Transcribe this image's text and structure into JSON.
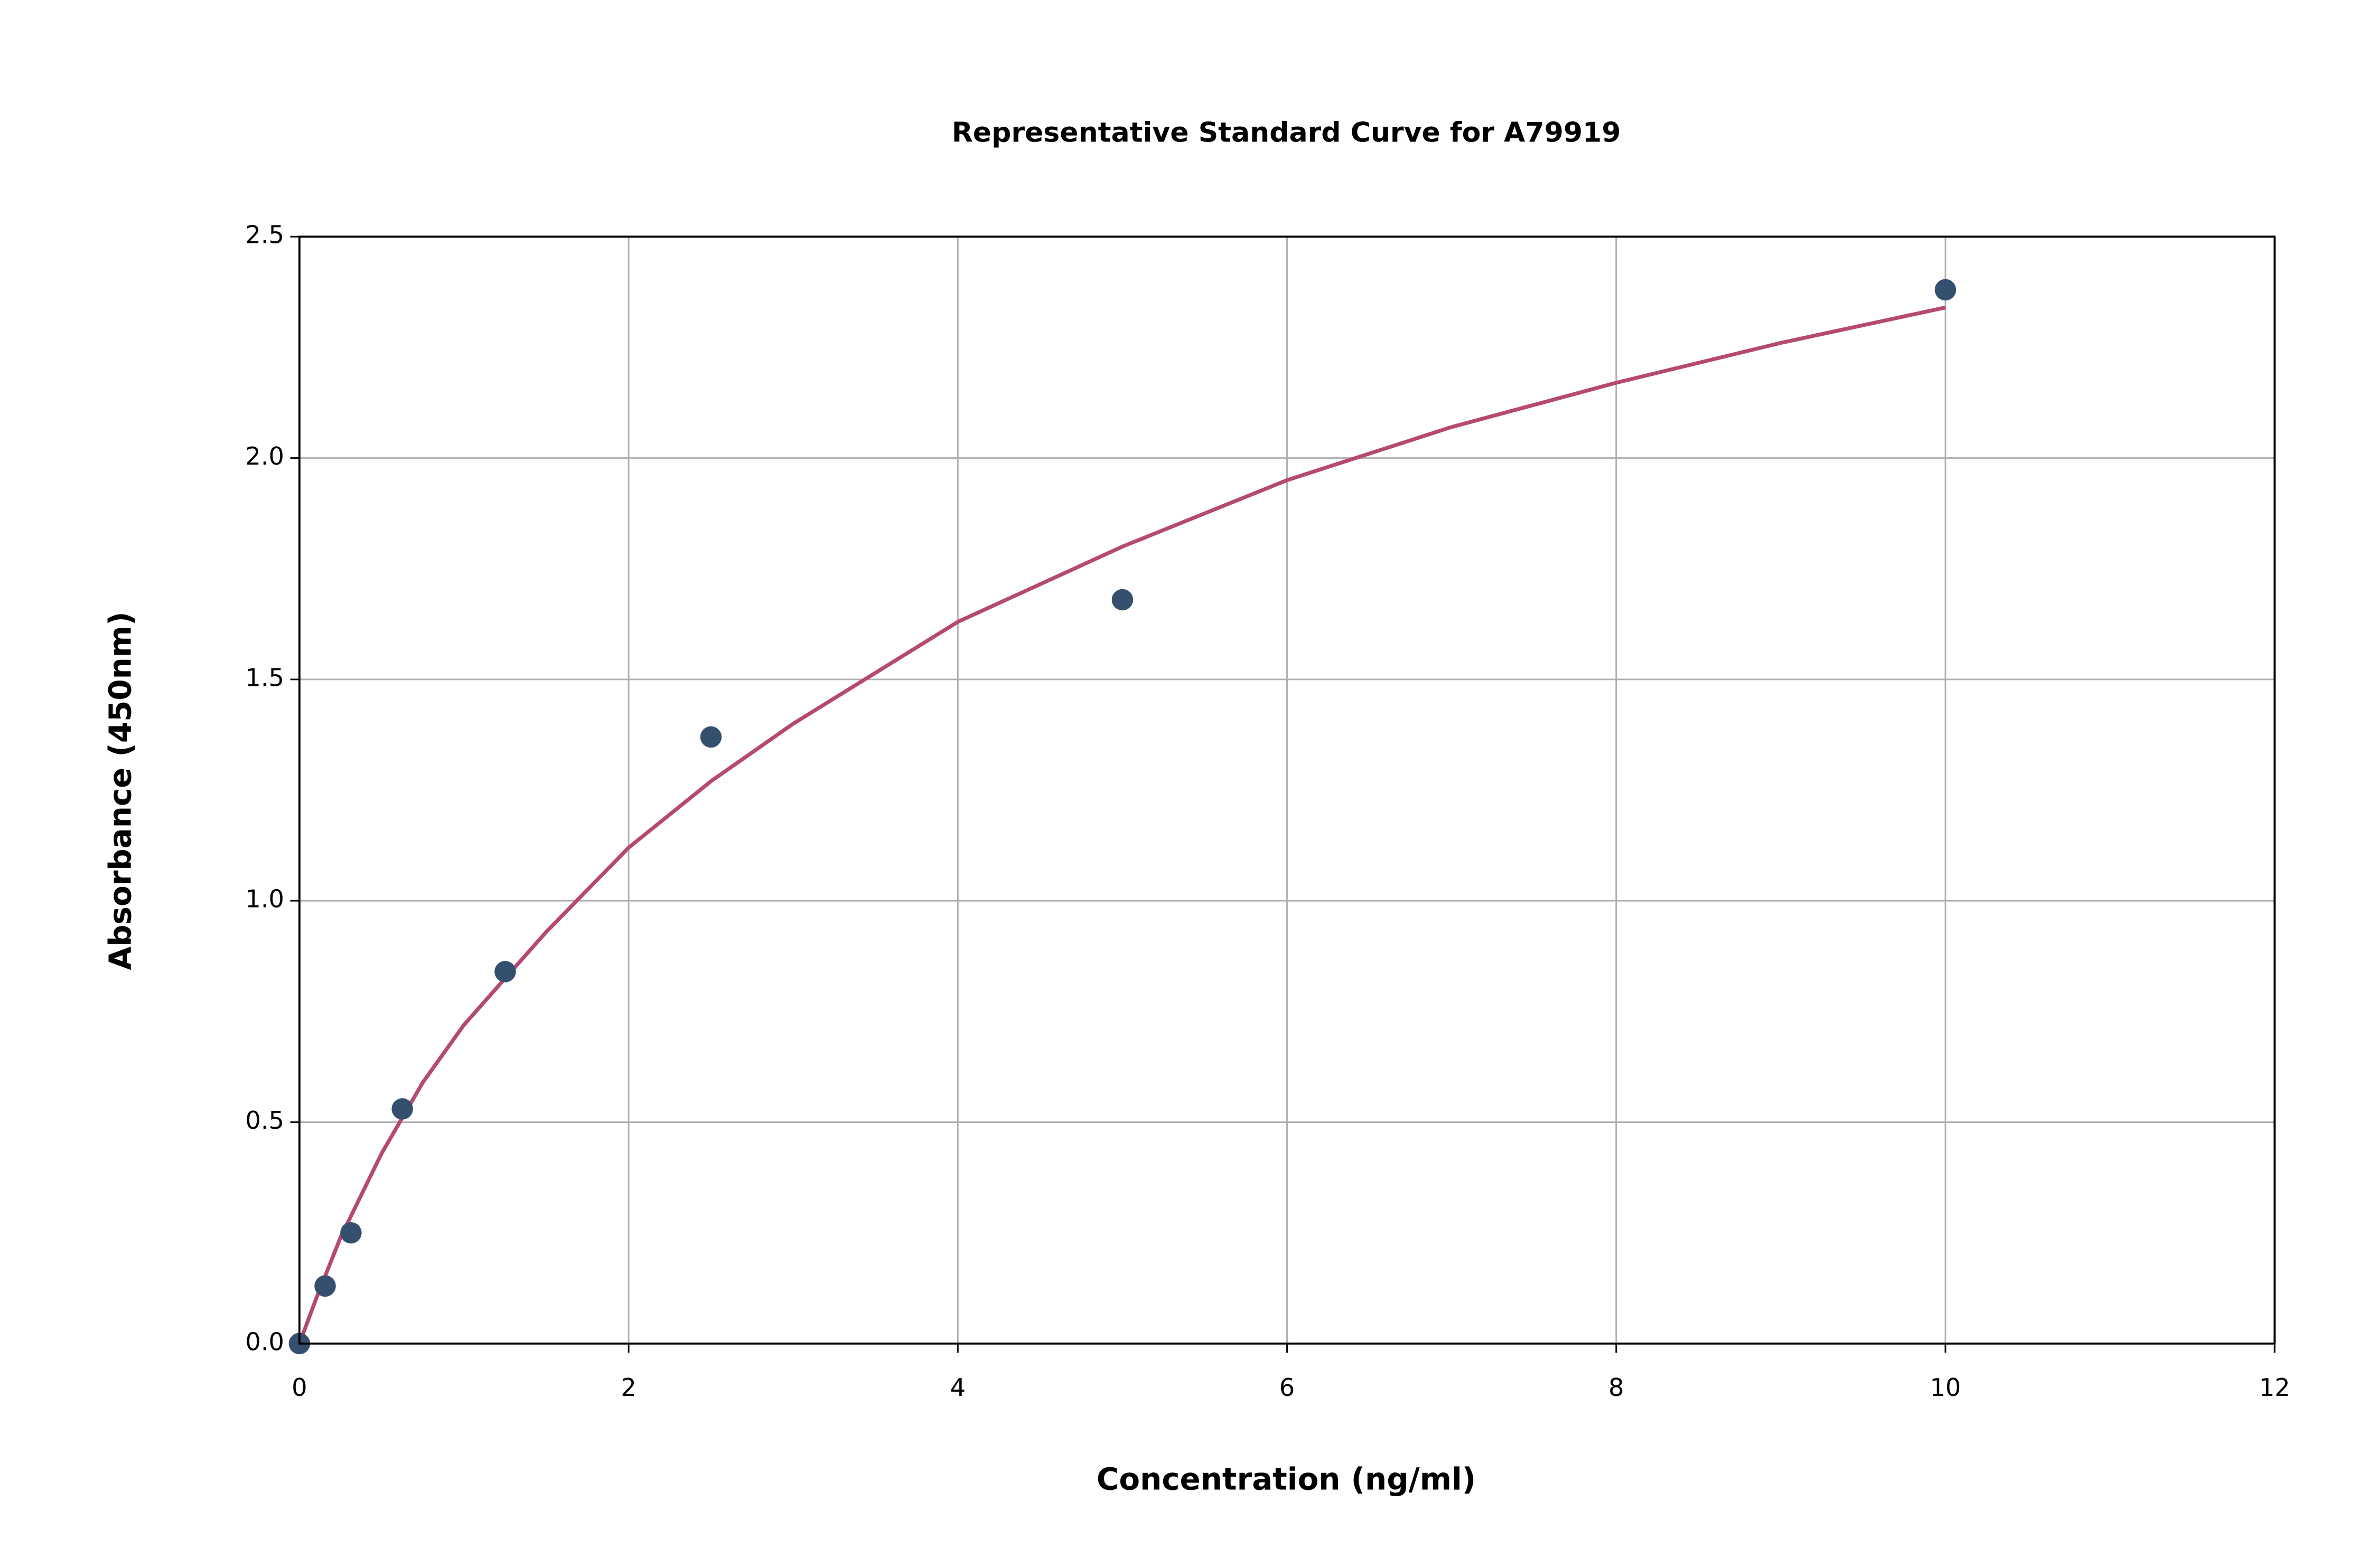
{
  "chart_data": {
    "type": "scatter",
    "title": "Representative Standard Curve for A79919",
    "x_label": "Concentration (ng/ml)",
    "y_label": "Absorbance (450nm)",
    "xlim": [
      0,
      12
    ],
    "ylim": [
      0,
      2.5
    ],
    "xticks": [
      0,
      2,
      4,
      6,
      8,
      10,
      12
    ],
    "yticks": [
      {
        "value": 0,
        "label": "0.0"
      },
      0.5,
      {
        "value": 1,
        "label": "1.0"
      },
      1.5,
      {
        "value": 2,
        "label": "2.0"
      },
      2.5
    ],
    "grid": true,
    "series": [
      {
        "type": "line",
        "color": "#b5496f",
        "x": [
          0,
          0.1,
          0.25,
          0.5,
          0.75,
          1,
          1.5,
          2,
          2.5,
          3,
          4,
          5,
          6,
          7,
          8,
          9,
          10
        ],
        "values": [
          0,
          0.1,
          0.24,
          0.43,
          0.59,
          0.72,
          0.93,
          1.12,
          1.27,
          1.4,
          1.63,
          1.8,
          1.95,
          2.07,
          2.17,
          2.26,
          2.34
        ]
      },
      {
        "type": "scatter",
        "color": "#34506e",
        "x": [
          0,
          0.156,
          0.313,
          0.625,
          1.25,
          2.5,
          5,
          10
        ],
        "values": [
          0,
          0.13,
          0.25,
          0.53,
          0.84,
          1.37,
          1.68,
          2.38
        ]
      }
    ]
  }
}
